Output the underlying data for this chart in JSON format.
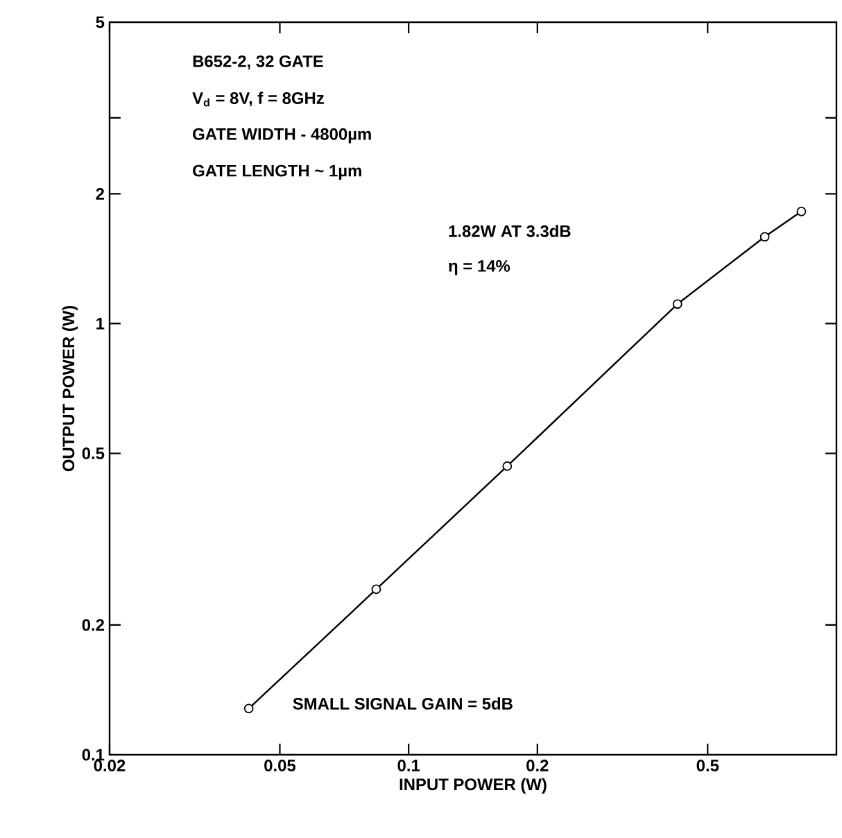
{
  "chart_data": {
    "type": "line",
    "xlabel": "INPUT POWER (W)",
    "ylabel": "OUTPUT POWER (W)",
    "annotations": [
      "B652-2, 32 GATE",
      "V$_{d}$ = 8V, f = 8GHz",
      "GATE WIDTH - 4800µm",
      "GATE LENGTH ~ 1µm",
      "1.82W AT 3.3dB",
      "η = 14%",
      "SMALL SIGNAL GAIN = 5dB"
    ],
    "log": "xy",
    "marker": "circle",
    "line_style": "solid",
    "xlim": [
      0.02,
      1
    ],
    "ylim": [
      0.1,
      5
    ],
    "xticks": [
      0.02,
      0.05,
      0.1,
      0.2,
      0.5
    ],
    "yticks": [
      0.1,
      0.2,
      0.5,
      1,
      2,
      {
        "value": 3,
        "label": null
      },
      5
    ],
    "series": [
      {
        "color": "#000000",
        "x": [
          0.0423,
          0.084,
          0.17,
          0.425,
          0.68,
          0.828
        ],
        "values": [
          0.128,
          0.242,
          0.467,
          1.11,
          1.59,
          1.82
        ]
      }
    ]
  }
}
